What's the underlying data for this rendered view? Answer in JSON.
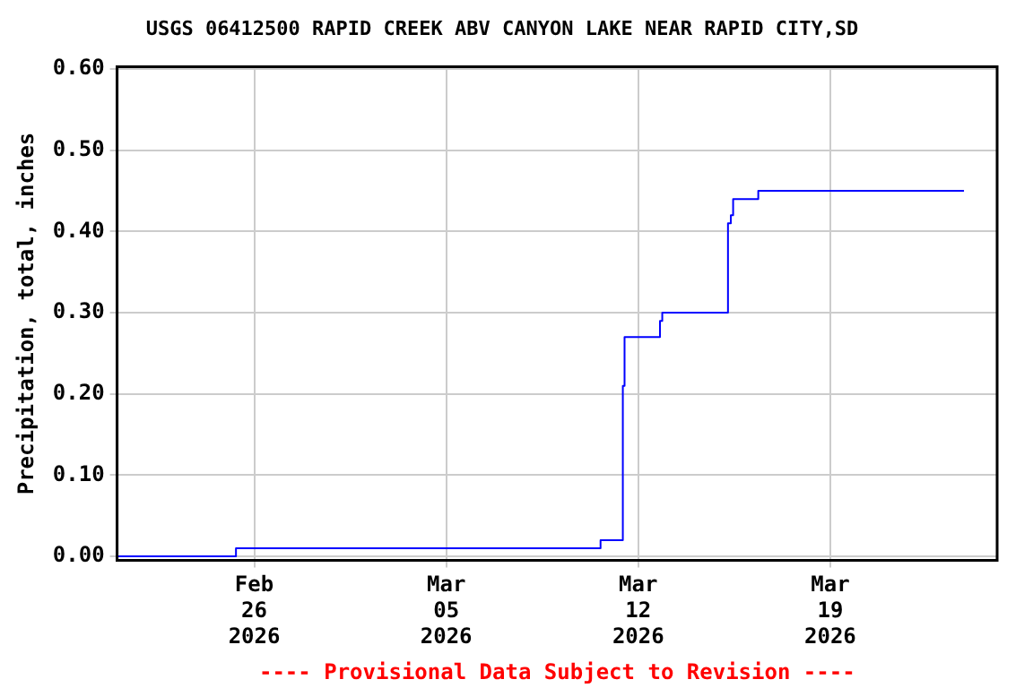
{
  "chart_data": {
    "type": "step",
    "title": "USGS 06412500 RAPID CREEK ABV CANYON LAKE NEAR RAPID CITY,SD",
    "ylabel": "Precipitation, total, inches",
    "annotations": [
      "---- Provisional Data Subject to Revision ----"
    ],
    "x": [
      "2026-02-21T00:00",
      "2026-02-25T08:00",
      "2026-03-10T15:00",
      "2026-03-11T10:30",
      "2026-03-11T12:00",
      "2026-03-12T19:00",
      "2026-03-12T21:00",
      "2026-03-15T06:30",
      "2026-03-15T09:00",
      "2026-03-15T11:00",
      "2026-03-16T09:00",
      "2026-03-23T21:00"
    ],
    "series": [
      {
        "color": "#0000ff",
        "values": [
          0.0,
          0.01,
          0.02,
          0.21,
          0.27,
          0.29,
          0.3,
          0.41,
          0.42,
          0.44,
          0.45,
          0.45
        ]
      }
    ],
    "xlim": [
      "2026-02-21T00:00",
      "2026-03-25T02:00"
    ],
    "xticks": [
      {
        "value": "2026-02-26",
        "label": "Feb 26 2026"
      },
      {
        "value": "2026-03-05",
        "label": "Mar 05 2026"
      },
      {
        "value": "2026-03-12",
        "label": "Mar 12 2026"
      },
      {
        "value": "2026-03-19",
        "label": "Mar 19 2026"
      }
    ],
    "ylim": [
      -0.005,
      0.603
    ],
    "yticks": [
      {
        "value": 0,
        "label": "0.00"
      },
      {
        "value": 0.1,
        "label": "0.10"
      },
      {
        "value": 0.2,
        "label": "0.20"
      },
      {
        "value": 0.3,
        "label": "0.30"
      },
      {
        "value": 0.4,
        "label": "0.40"
      },
      {
        "value": 0.5,
        "label": "0.50"
      },
      {
        "value": 0.6,
        "label": "0.60"
      }
    ],
    "grid": true,
    "legend": false,
    "marker": "none",
    "line_style": "solid"
  }
}
